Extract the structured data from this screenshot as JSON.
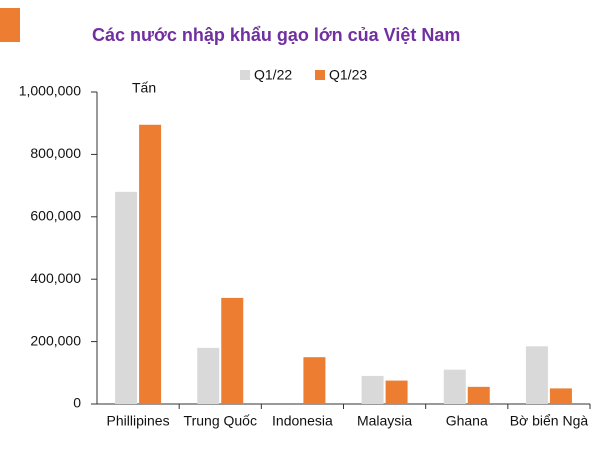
{
  "chart_data": {
    "type": "bar",
    "title": "Các nước nhập khẩu gạo lớn của Việt Nam",
    "y_label": "Tấn",
    "categories": [
      "Phillipines",
      "Trung Quốc",
      "Indonesia",
      "Malaysia",
      "Ghana",
      "Bờ biển Ngà"
    ],
    "series": [
      {
        "name": "Q1/22",
        "color": "#d9d9d9",
        "values": [
          680000,
          180000,
          0,
          90000,
          110000,
          185000
        ]
      },
      {
        "name": "Q1/23",
        "color": "#ed7d31",
        "values": [
          895000,
          340000,
          150000,
          75000,
          55000,
          50000
        ]
      }
    ],
    "ylim": [
      0,
      1000000
    ],
    "yticks": [
      0,
      {
        "value": 200000,
        "label": "200,000"
      },
      {
        "value": 400000,
        "label": "400,000"
      },
      {
        "value": 600000,
        "label": "600,000"
      },
      {
        "value": 800000,
        "label": "800,000"
      },
      {
        "value": 1000000,
        "label": "1,000,000"
      }
    ],
    "grid": false
  }
}
